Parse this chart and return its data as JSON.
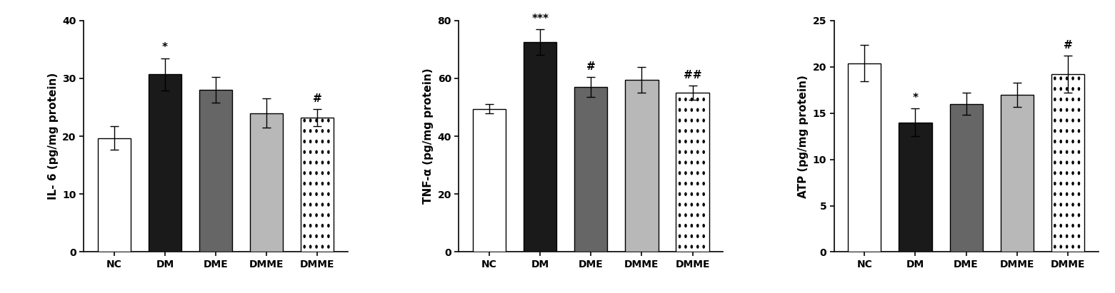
{
  "panels": [
    {
      "ylabel": "IL- 6 (pg/mg protein)",
      "ylim": [
        0,
        40
      ],
      "yticks": [
        0,
        10,
        20,
        30,
        40
      ],
      "categories": [
        "NC",
        "DM",
        "DME",
        "DMME",
        "DMME"
      ],
      "values": [
        19.7,
        30.7,
        28.0,
        24.0,
        23.2
      ],
      "errors": [
        2.0,
        2.8,
        2.2,
        2.5,
        1.5
      ],
      "annotations": [
        "",
        "*",
        "",
        "",
        "#"
      ],
      "bar_colors": [
        "white",
        "#1a1a1a",
        "#666666",
        "#b8b8b8",
        "dotted_white"
      ],
      "bar_edgecolor": "black"
    },
    {
      "ylabel": "TNF-α (pg/mg protein)",
      "ylim": [
        0,
        80
      ],
      "yticks": [
        0,
        20,
        40,
        60,
        80
      ],
      "categories": [
        "NC",
        "DM",
        "DME",
        "DMME",
        "DMME"
      ],
      "values": [
        49.5,
        72.5,
        57.0,
        59.5,
        55.0
      ],
      "errors": [
        1.5,
        4.5,
        3.5,
        4.5,
        2.5
      ],
      "annotations": [
        "",
        "***",
        "#",
        "",
        "##"
      ],
      "bar_colors": [
        "white",
        "#1a1a1a",
        "#666666",
        "#b8b8b8",
        "dotted_white"
      ],
      "bar_edgecolor": "black"
    },
    {
      "ylabel": "ATP (pg/mg protein)",
      "ylim": [
        0,
        25
      ],
      "yticks": [
        0,
        5,
        10,
        15,
        20,
        25
      ],
      "categories": [
        "NC",
        "DM",
        "DME",
        "DMME",
        "DMME"
      ],
      "values": [
        20.4,
        14.0,
        16.0,
        17.0,
        19.2
      ],
      "errors": [
        2.0,
        1.5,
        1.2,
        1.3,
        2.0
      ],
      "annotations": [
        "",
        "*",
        "",
        "",
        "#"
      ],
      "bar_colors": [
        "white",
        "#1a1a1a",
        "#666666",
        "#b8b8b8",
        "dotted_white"
      ],
      "bar_edgecolor": "black"
    }
  ],
  "fig_width": 15.61,
  "fig_height": 4.11,
  "background_color": "white",
  "annotation_fontsize": 11,
  "label_fontsize": 11,
  "tick_fontsize": 10,
  "bar_width": 0.65
}
